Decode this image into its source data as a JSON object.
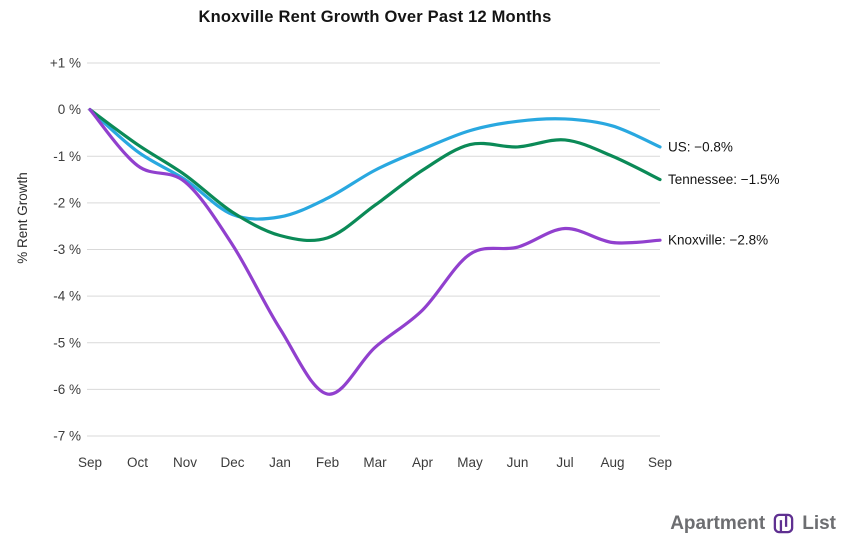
{
  "title": "Knoxville Rent Growth Over Past 12 Months",
  "ylabel": "% Rent Growth",
  "logo": {
    "word1": "Apartment",
    "word2": "List",
    "icon_color": "#5f3091",
    "text_color": "#6d6e71"
  },
  "chart_data": {
    "type": "line",
    "x": [
      "Sep",
      "Oct",
      "Nov",
      "Dec",
      "Jan",
      "Feb",
      "Mar",
      "Apr",
      "May",
      "Jun",
      "Jul",
      "Aug",
      "Sep"
    ],
    "ylim": [
      -7,
      1
    ],
    "yticks": [
      {
        "value": 1,
        "label": "+1 %"
      },
      {
        "value": 0,
        "label": "0 %"
      },
      {
        "value": -1,
        "label": "-1 %"
      },
      {
        "value": -2,
        "label": "-2 %"
      },
      {
        "value": -3,
        "label": "-3 %"
      },
      {
        "value": -4,
        "label": "-4 %"
      },
      {
        "value": -5,
        "label": "-5 %"
      },
      {
        "value": -6,
        "label": "-6 %"
      },
      {
        "value": -7,
        "label": "-7 %"
      }
    ],
    "grid": true,
    "grid_color": "#d9d9d9",
    "tick_color": "#3c3c3c",
    "legend_position": "right-of-line-ends",
    "series": [
      {
        "name": "US",
        "color": "#29a8e0",
        "end_label": "US: −0.8%",
        "values": [
          0,
          -0.9,
          -1.5,
          -2.25,
          -2.3,
          -1.9,
          -1.3,
          -0.85,
          -0.45,
          -0.25,
          -0.2,
          -0.35,
          -0.8
        ]
      },
      {
        "name": "Tennessee",
        "color": "#0b8a57",
        "end_label": "Tennessee: −1.5%",
        "values": [
          0,
          -0.75,
          -1.4,
          -2.2,
          -2.7,
          -2.75,
          -2.05,
          -1.3,
          -0.75,
          -0.8,
          -0.65,
          -1.0,
          -1.5
        ]
      },
      {
        "name": "Knoxville",
        "color": "#9140ce",
        "end_label": "Knoxville: −2.8%",
        "values": [
          0,
          -1.2,
          -1.55,
          -2.9,
          -4.7,
          -6.1,
          -5.1,
          -4.3,
          -3.1,
          -2.95,
          -2.55,
          -2.85,
          -2.8
        ]
      }
    ]
  }
}
